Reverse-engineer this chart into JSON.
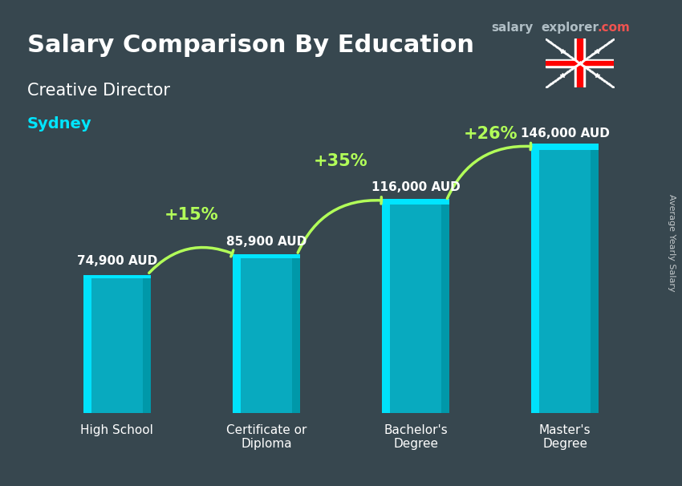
{
  "title": "Salary Comparison By Education",
  "subtitle": "Creative Director",
  "city": "Sydney",
  "categories": [
    "High School",
    "Certificate or\nDiploma",
    "Bachelor's\nDegree",
    "Master's\nDegree"
  ],
  "values": [
    74900,
    85900,
    116000,
    146000
  ],
  "value_labels": [
    "74,900 AUD",
    "85,900 AUD",
    "116,000 AUD",
    "146,000 AUD"
  ],
  "pct_labels": [
    "+15%",
    "+35%",
    "+26%"
  ],
  "bar_color_top": "#00e5ff",
  "bar_color_mid": "#00bcd4",
  "bar_color_bottom": "#0097a7",
  "background_color": "#37474f",
  "title_color": "#ffffff",
  "subtitle_color": "#ffffff",
  "city_color": "#00e5ff",
  "label_color": "#ffffff",
  "pct_color": "#b2ff59",
  "arrow_color": "#b2ff59",
  "salary_label_color": "#ffffff",
  "watermark_color1": "#b0bec5",
  "watermark_color2": "#ef5350",
  "ylabel": "Average Yearly Salary",
  "ylim": [
    0,
    170000
  ],
  "bar_width": 0.45,
  "figsize": [
    8.5,
    6.06
  ],
  "dpi": 100
}
